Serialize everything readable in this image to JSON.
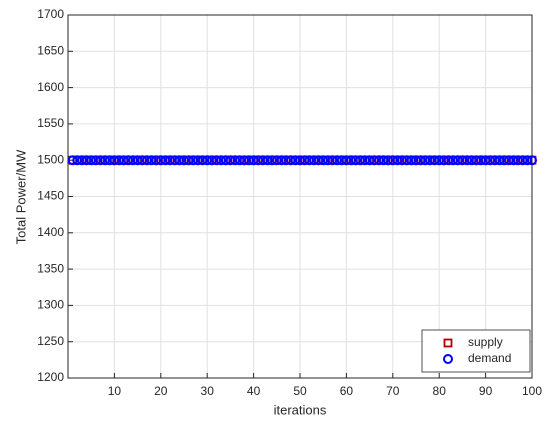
{
  "chart_data": {
    "type": "scatter",
    "x_label": "iterations",
    "y_label": "Total Power/MW",
    "x": [
      1,
      2,
      3,
      4,
      5,
      6,
      7,
      8,
      9,
      10,
      11,
      12,
      13,
      14,
      15,
      16,
      17,
      18,
      19,
      20,
      21,
      22,
      23,
      24,
      25,
      26,
      27,
      28,
      29,
      30,
      31,
      32,
      33,
      34,
      35,
      36,
      37,
      38,
      39,
      40,
      41,
      42,
      43,
      44,
      45,
      46,
      47,
      48,
      49,
      50,
      51,
      52,
      53,
      54,
      55,
      56,
      57,
      58,
      59,
      60,
      61,
      62,
      63,
      64,
      65,
      66,
      67,
      68,
      69,
      70,
      71,
      72,
      73,
      74,
      75,
      76,
      77,
      78,
      79,
      80,
      81,
      82,
      83,
      84,
      85,
      86,
      87,
      88,
      89,
      90,
      91,
      92,
      93,
      94,
      95,
      96,
      97,
      98,
      99,
      100
    ],
    "series": [
      {
        "name": "supply",
        "color": "#b00000",
        "marker": "square",
        "values": [
          1500,
          1500,
          1500,
          1500,
          1500,
          1500,
          1500,
          1500,
          1500,
          1500,
          1500,
          1500,
          1500,
          1500,
          1500,
          1500,
          1500,
          1500,
          1500,
          1500,
          1500,
          1500,
          1500,
          1500,
          1500,
          1500,
          1500,
          1500,
          1500,
          1500,
          1500,
          1500,
          1500,
          1500,
          1500,
          1500,
          1500,
          1500,
          1500,
          1500,
          1500,
          1500,
          1500,
          1500,
          1500,
          1500,
          1500,
          1500,
          1500,
          1500,
          1500,
          1500,
          1500,
          1500,
          1500,
          1500,
          1500,
          1500,
          1500,
          1500,
          1500,
          1500,
          1500,
          1500,
          1500,
          1500,
          1500,
          1500,
          1500,
          1500,
          1500,
          1500,
          1500,
          1500,
          1500,
          1500,
          1500,
          1500,
          1500,
          1500,
          1500,
          1500,
          1500,
          1500,
          1500,
          1500,
          1500,
          1500,
          1500,
          1500,
          1500,
          1500,
          1500,
          1500,
          1500,
          1500,
          1500,
          1500,
          1500,
          1500
        ]
      },
      {
        "name": "demand",
        "color": "#0000ff",
        "marker": "circle",
        "values": [
          1500,
          1500,
          1500,
          1500,
          1500,
          1500,
          1500,
          1500,
          1500,
          1500,
          1500,
          1500,
          1500,
          1500,
          1500,
          1500,
          1500,
          1500,
          1500,
          1500,
          1500,
          1500,
          1500,
          1500,
          1500,
          1500,
          1500,
          1500,
          1500,
          1500,
          1500,
          1500,
          1500,
          1500,
          1500,
          1500,
          1500,
          1500,
          1500,
          1500,
          1500,
          1500,
          1500,
          1500,
          1500,
          1500,
          1500,
          1500,
          1500,
          1500,
          1500,
          1500,
          1500,
          1500,
          1500,
          1500,
          1500,
          1500,
          1500,
          1500,
          1500,
          1500,
          1500,
          1500,
          1500,
          1500,
          1500,
          1500,
          1500,
          1500,
          1500,
          1500,
          1500,
          1500,
          1500,
          1500,
          1500,
          1500,
          1500,
          1500,
          1500,
          1500,
          1500,
          1500,
          1500,
          1500,
          1500,
          1500,
          1500,
          1500,
          1500,
          1500,
          1500,
          1500,
          1500,
          1500,
          1500,
          1500,
          1500,
          1500
        ]
      }
    ],
    "xlim": [
      0,
      100
    ],
    "xticks": [
      10,
      20,
      30,
      40,
      50,
      60,
      70,
      80,
      90,
      100
    ],
    "ylim": [
      1200,
      1700
    ],
    "yticks": [
      1200,
      1250,
      1300,
      1350,
      1400,
      1450,
      1500,
      1550,
      1600,
      1650,
      1700
    ],
    "grid": true,
    "legend": "lower right"
  }
}
